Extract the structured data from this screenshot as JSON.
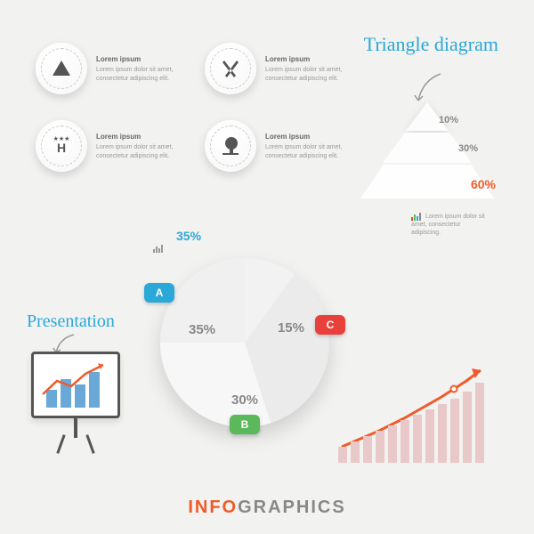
{
  "icons": [
    {
      "name": "tent-icon",
      "title": "Lorem ipsum",
      "body": "Lorem ipsum dolor sit amet, consectetur adipiscing elit."
    },
    {
      "name": "food-icon",
      "title": "Lorem ipsum",
      "body": "Lorem ipsum dolor sit amet, consectetur adipiscing elit."
    },
    {
      "name": "hotel-icon",
      "title": "Lorem ipsum",
      "body": "Lorem ipsum dolor sit amet, consectetur adipiscing elit."
    },
    {
      "name": "tree-icon",
      "title": "Lorem ipsum",
      "body": "Lorem ipsum dolor sit amet, consectetur adipiscing elit."
    }
  ],
  "triangle": {
    "label": "Triangle diagram",
    "levels": [
      {
        "pct": "10%",
        "color": "#888888"
      },
      {
        "pct": "30%",
        "color": "#888888"
      },
      {
        "pct": "60%",
        "color": "#f15a29"
      }
    ],
    "caption": "Lorem ipsum dolor sit amet, consectetur adipiscing."
  },
  "pie": {
    "callout_pct": "35%",
    "segments": [
      {
        "label": "A",
        "pct": "35%",
        "color": "#2aa8d8"
      },
      {
        "label": "B",
        "pct": "30%",
        "color": "#5bb85b"
      },
      {
        "label": "C",
        "pct": "15%",
        "color": "#e8403a"
      }
    ]
  },
  "presentation": {
    "label": "Presentation",
    "bars": [
      20,
      35,
      28,
      45
    ],
    "bar_color": "#6aa8d8",
    "line_color": "#f15a29"
  },
  "growth": {
    "bars": [
      18,
      24,
      30,
      36,
      42,
      48,
      54,
      60,
      66,
      72,
      80,
      90
    ],
    "bar_color": "#e8c8c8",
    "line_color": "#f15a29"
  },
  "footer": {
    "left": "INFO",
    "right": "GRAPHICS"
  }
}
